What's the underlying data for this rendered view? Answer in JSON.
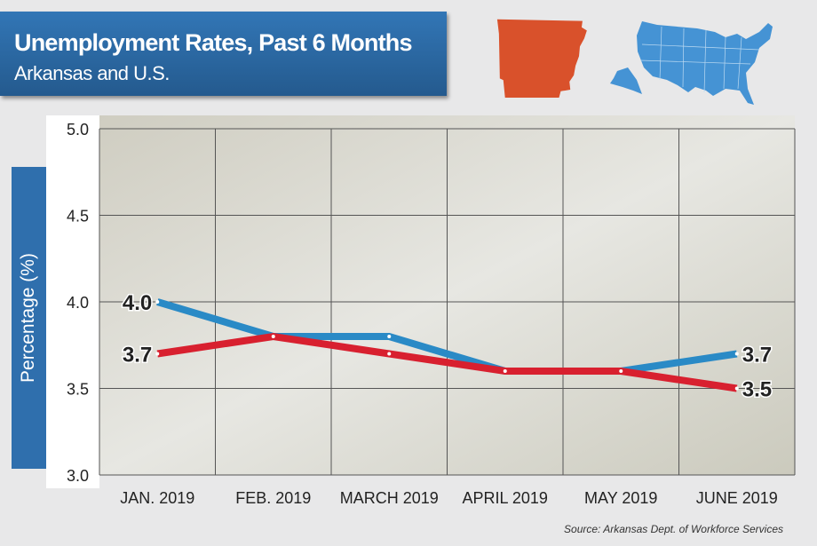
{
  "header": {
    "title": "Unemployment Rates, Past 6 Months",
    "subtitle": "Arkansas and U.S."
  },
  "icons": {
    "arkansas_map": "arkansas-map-icon",
    "us_map": "us-map-icon"
  },
  "colors": {
    "us": "#2a8ac6",
    "arkansas": "#d8202f",
    "title_bg": "#2d6da9",
    "arkansas_map": "#d9512b",
    "us_map": "#4593d4"
  },
  "chart_data": {
    "type": "line",
    "title": "Unemployment Rates, Past 6 Months",
    "subtitle": "Arkansas and U.S.",
    "ylabel": "Percentage (%)",
    "xlabel": "",
    "ylim": [
      3.0,
      5.0
    ],
    "yticks": [
      "3.0",
      "3.5",
      "4.0",
      "4.5",
      "5.0"
    ],
    "categories": [
      "JAN. 2019",
      "FEB. 2019",
      "MARCH 2019",
      "APRIL 2019",
      "MAY 2019",
      "JUNE 2019"
    ],
    "series": [
      {
        "name": "U.S.",
        "color": "#2a8ac6",
        "values": [
          4.0,
          3.8,
          3.8,
          3.6,
          3.6,
          3.7
        ]
      },
      {
        "name": "Arkansas",
        "color": "#d8202f",
        "values": [
          3.7,
          3.8,
          3.7,
          3.6,
          3.6,
          3.5
        ]
      }
    ],
    "data_labels": {
      "start_us": "4.0",
      "start_ar": "3.7",
      "end_us": "3.7",
      "end_ar": "3.5"
    },
    "grid": true
  },
  "source": "Source: Arkansas Dept. of Workforce Services"
}
